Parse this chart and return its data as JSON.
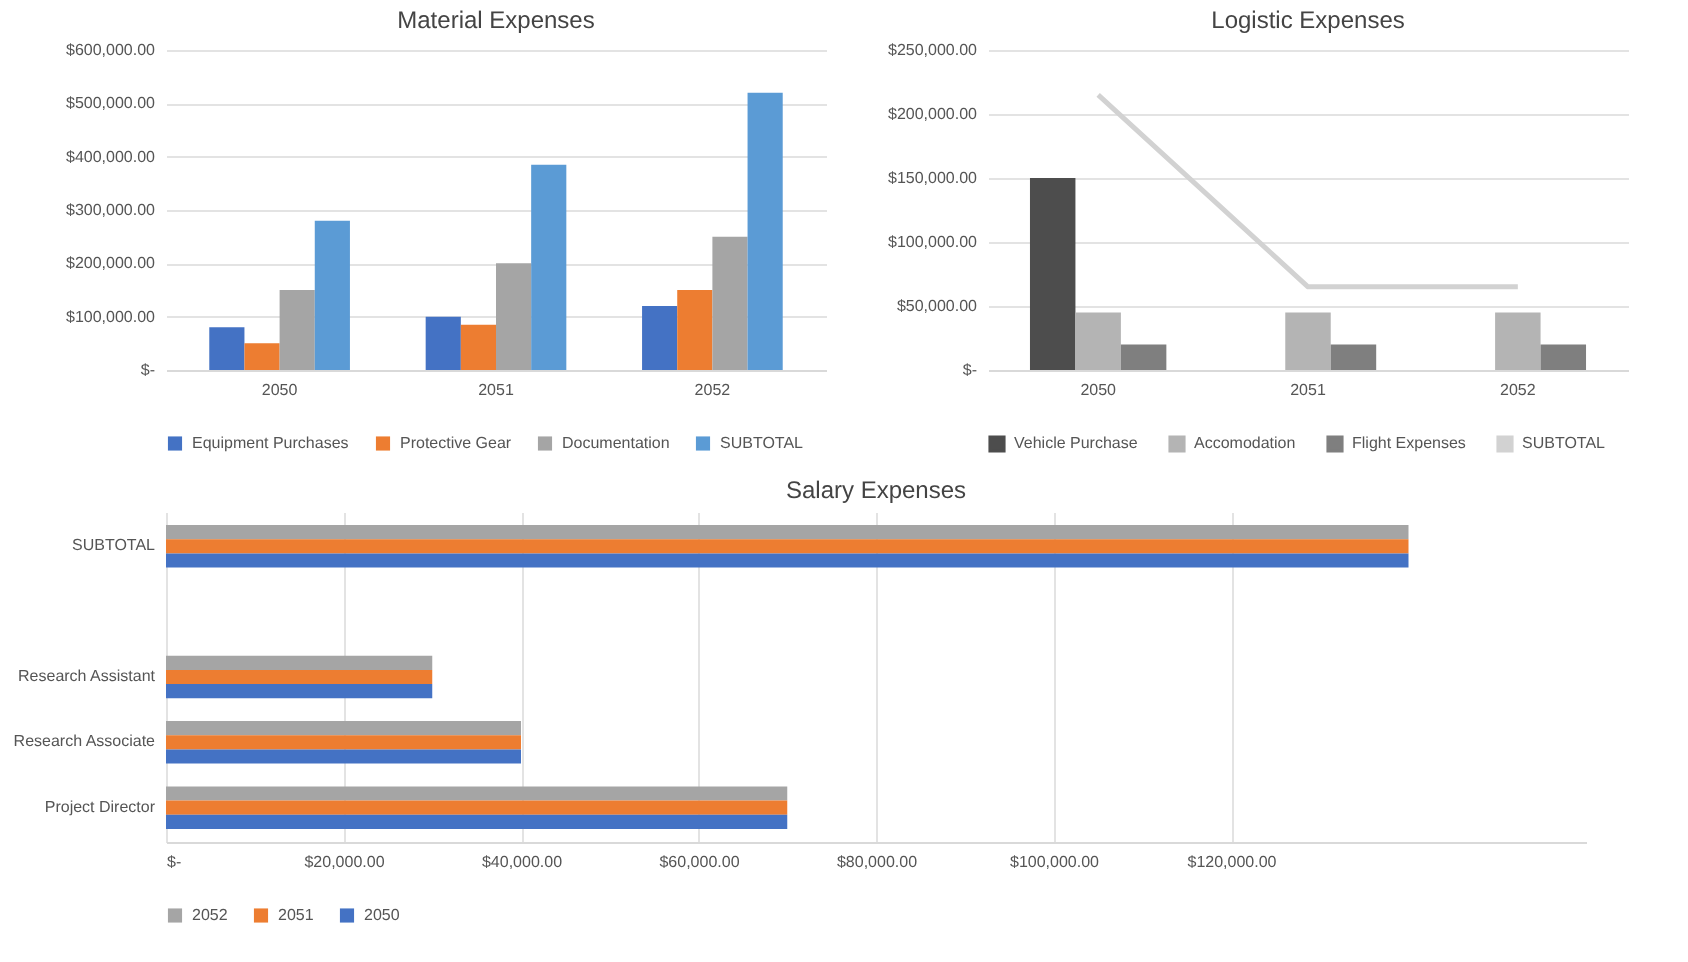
{
  "chart_data": [
    {
      "type": "bar",
      "title": "Material Expenses",
      "categories": [
        "2050",
        "2051",
        "2052"
      ],
      "series": [
        {
          "name": "Equipment Purchases",
          "color": "#4472c4",
          "values": [
            80000,
            100000,
            120000
          ]
        },
        {
          "name": "Protective Gear",
          "color": "#ed7d31",
          "values": [
            50000,
            85000,
            150000
          ]
        },
        {
          "name": "Documentation",
          "color": "#a5a5a5",
          "values": [
            150000,
            200000,
            250000
          ]
        },
        {
          "name": "SUBTOTAL",
          "color": "#5b9bd5",
          "values": [
            280000,
            385000,
            520000
          ]
        }
      ],
      "ylim": [
        0,
        600000
      ],
      "yticks": [
        {
          "value": 0,
          "label": "$-"
        },
        {
          "value": 100000,
          "label": "$100,000.00"
        },
        {
          "value": 200000,
          "label": "$200,000.00"
        },
        {
          "value": 300000,
          "label": "$300,000.00"
        },
        {
          "value": 400000,
          "label": "$400,000.00"
        },
        {
          "value": 500000,
          "label": "$500,000.00"
        },
        {
          "value": 600000,
          "label": "$600,000.00"
        }
      ],
      "grid": "y",
      "legend": "bottom"
    },
    {
      "type": "bar",
      "title": "Logistic Expenses",
      "categories": [
        "2050",
        "2051",
        "2052"
      ],
      "series": [
        {
          "name": "Vehicle Purchase",
          "color": "#4d4d4d",
          "values": [
            150000,
            null,
            null
          ]
        },
        {
          "name": "Accomodation",
          "color": "#b4b4b4",
          "values": [
            45000,
            45000,
            45000
          ]
        },
        {
          "name": "Flight Expenses",
          "color": "#7f7f7f",
          "values": [
            20000,
            20000,
            20000
          ]
        },
        {
          "name": "SUBTOTAL",
          "type": "line",
          "color": "#d2d2d2",
          "values": [
            215000,
            65000,
            65000
          ]
        }
      ],
      "ylim": [
        0,
        250000
      ],
      "yticks": [
        {
          "value": 0,
          "label": "$-"
        },
        {
          "value": 50000,
          "label": "$50,000.00"
        },
        {
          "value": 100000,
          "label": "$100,000.00"
        },
        {
          "value": 150000,
          "label": "$150,000.00"
        },
        {
          "value": 200000,
          "label": "$200,000.00"
        },
        {
          "value": 250000,
          "label": "$250,000.00"
        }
      ],
      "grid": "y",
      "legend": "bottom"
    },
    {
      "type": "bar",
      "title": "Salary Expenses",
      "orientation": "horizontal",
      "categories": [
        "SUBTOTAL",
        null,
        "Research Assistant",
        "Research Associate",
        "Project Director"
      ],
      "series": [
        {
          "name": "2052",
          "color": "#a5a5a5",
          "values": [
            140000,
            null,
            30000,
            40000,
            70000
          ]
        },
        {
          "name": "2051",
          "color": "#ed7d31",
          "values": [
            140000,
            null,
            30000,
            40000,
            70000
          ]
        },
        {
          "name": "2050",
          "color": "#4472c4",
          "values": [
            140000,
            null,
            30000,
            40000,
            70000
          ]
        }
      ],
      "xlim": [
        0,
        160000
      ],
      "xticks": [
        {
          "value": 0,
          "label": "$-"
        },
        {
          "value": 20000,
          "label": "$20,000.00"
        },
        {
          "value": 40000,
          "label": "$40,000.00"
        },
        {
          "value": 60000,
          "label": "$60,000.00"
        },
        {
          "value": 80000,
          "label": "$80,000.00"
        },
        {
          "value": 100000,
          "label": "$100,000.00"
        },
        {
          "value": 120000,
          "label": "$120,000.00"
        }
      ],
      "grid": "x",
      "legend": "bottom"
    }
  ]
}
